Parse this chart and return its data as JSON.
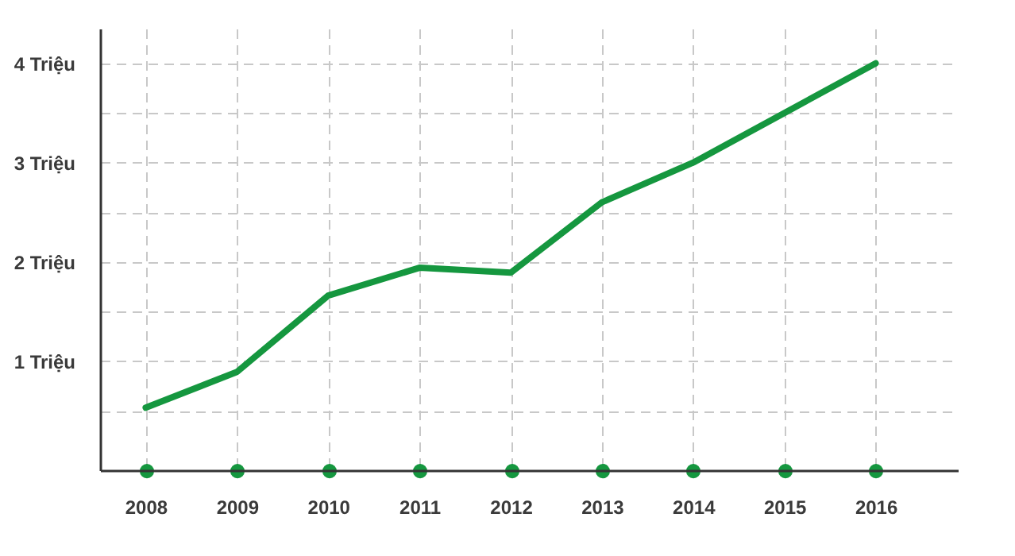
{
  "chart_data": {
    "type": "line",
    "categories": [
      "2008",
      "2009",
      "2010",
      "2011",
      "2012",
      "2013",
      "2014",
      "2015",
      "2016"
    ],
    "series": [
      {
        "color": "#15973f",
        "values": [
          0.53,
          0.89,
          1.66,
          1.94,
          1.89,
          2.6,
          3.0,
          3.5,
          4.0
        ]
      }
    ],
    "ylim": [
      -0.1,
      4.35
    ],
    "yticks": [
      {
        "value": 0.5,
        "label": null
      },
      {
        "value": 1,
        "label": "1 Triệu"
      },
      {
        "value": 1.5,
        "label": null
      },
      {
        "value": 2,
        "label": "2 Triệu"
      },
      {
        "value": 2.5,
        "label": null
      },
      {
        "value": 3,
        "label": "3 Triệu"
      },
      {
        "value": 3.5,
        "label": null
      },
      {
        "value": 4,
        "label": "4 Triệu"
      }
    ],
    "grid": true,
    "marker": "none",
    "line_style": "solid"
  }
}
